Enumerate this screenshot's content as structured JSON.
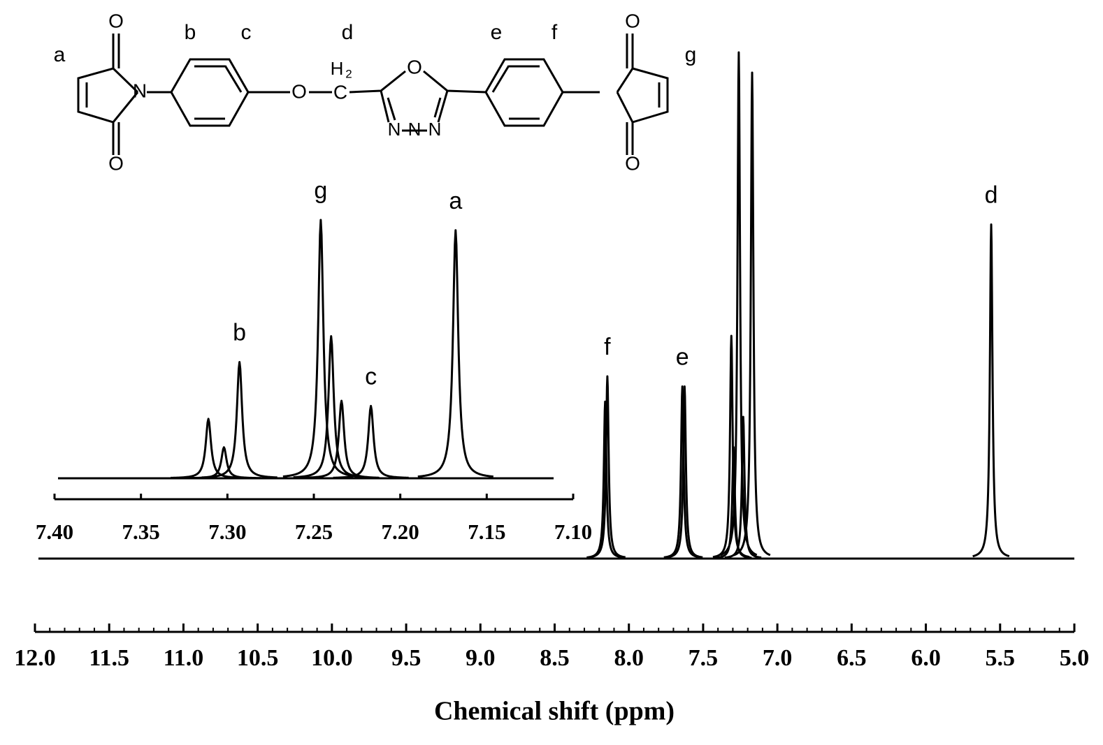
{
  "chart_data": [
    {
      "type": "spectrum",
      "color": "#000000",
      "xlabel": "Chemical shift (ppm)",
      "xlim": [
        12.0,
        5.0
      ],
      "xticks": [
        {
          "value": 12,
          "label": "12.0"
        },
        11.5,
        {
          "value": 11,
          "label": "11.0"
        },
        10.5,
        {
          "value": 10,
          "label": "10.0"
        },
        9.5,
        {
          "value": 9,
          "label": "9.0"
        },
        8.5,
        {
          "value": 8,
          "label": "8.0"
        },
        7.5,
        {
          "value": 7,
          "label": "7.0"
        },
        6.5,
        {
          "value": 6,
          "label": "6.0"
        },
        5.5,
        {
          "value": 5,
          "label": "5.0"
        }
      ],
      "xminor": [
        11.9,
        11.8,
        11.7,
        11.6,
        11.4,
        11.3,
        11.2,
        11.1,
        10.9,
        10.8,
        10.7,
        10.6,
        10.4,
        10.3,
        10.2,
        10.1,
        9.9,
        9.8,
        9.7,
        9.6,
        9.4,
        9.3,
        9.2,
        9.1,
        8.9,
        8.8,
        8.7,
        8.6,
        8.4,
        8.3,
        8.2,
        8.1,
        7.9,
        7.8,
        7.7,
        7.6,
        7.4,
        7.3,
        7.2,
        7.1,
        6.9,
        6.8,
        6.7,
        6.6,
        6.4,
        6.3,
        6.2,
        6.1,
        5.9,
        5.8,
        5.7,
        5.6,
        5.4,
        5.3,
        5.2,
        5.1
      ],
      "peaks": [
        {
          "shift": 8.16,
          "intensity": 31
        },
        {
          "shift": 8.145,
          "intensity": 36,
          "label": "f"
        },
        {
          "shift": 7.64,
          "intensity": 34,
          "label": "e"
        },
        {
          "shift": 7.625,
          "intensity": 34
        },
        {
          "shift": 7.31,
          "intensity": 44
        },
        {
          "shift": 7.295,
          "intensity": 22
        },
        {
          "shift": 7.26,
          "intensity": 100
        },
        {
          "shift": 7.23,
          "intensity": 28
        },
        {
          "shift": 7.17,
          "intensity": 96
        },
        {
          "shift": 5.56,
          "intensity": 66,
          "label": "d"
        }
      ]
    },
    {
      "type": "spectrum",
      "color": "#000000",
      "xlim": [
        7.4,
        7.1
      ],
      "xticks": [
        {
          "value": 7.4,
          "label": "7.40"
        },
        7.35,
        {
          "value": 7.3,
          "label": "7.30"
        },
        7.25,
        {
          "value": 7.2,
          "label": "7.20"
        },
        7.15,
        {
          "value": 7.1,
          "label": "7.10"
        }
      ],
      "peaks": [
        {
          "shift": 7.311,
          "intensity": 23
        },
        {
          "shift": 7.302,
          "intensity": 12
        },
        {
          "shift": 7.293,
          "intensity": 45,
          "label": "b"
        },
        {
          "shift": 7.246,
          "intensity": 100,
          "label": "g"
        },
        {
          "shift": 7.24,
          "intensity": 55
        },
        {
          "shift": 7.234,
          "intensity": 30
        },
        {
          "shift": 7.217,
          "intensity": 28,
          "label": "c"
        },
        {
          "shift": 7.168,
          "intensity": 96,
          "label": "a"
        }
      ]
    }
  ],
  "structure": {
    "site_labels": [
      "a",
      "b",
      "c",
      "d",
      "e",
      "f",
      "g"
    ],
    "atoms": [
      "O",
      "O",
      "N",
      "O",
      "H",
      "2",
      "C",
      "O",
      "N",
      "N",
      "N",
      "O",
      "O"
    ]
  }
}
